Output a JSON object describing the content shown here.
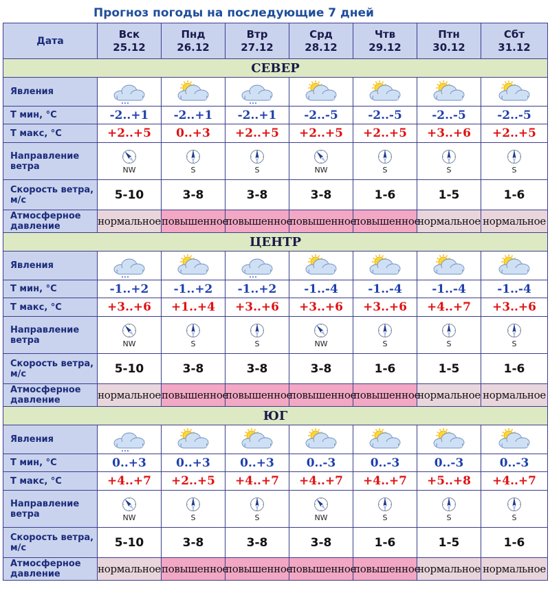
{
  "title": "Прогноз погоды на последующие 7 дней",
  "date_label": "Дата",
  "days": [
    {
      "dow": "Вск",
      "date": "25.12"
    },
    {
      "dow": "Пнд",
      "date": "26.12"
    },
    {
      "dow": "Втр",
      "date": "27.12"
    },
    {
      "dow": "Срд",
      "date": "28.12"
    },
    {
      "dow": "Чтв",
      "date": "29.12"
    },
    {
      "dow": "Птн",
      "date": "30.12"
    },
    {
      "dow": "Сбт",
      "date": "31.12"
    }
  ],
  "row_labels": {
    "phen": "Явления",
    "tmin": "Т мин, °C",
    "tmax": "Т макс, °C",
    "wdir": "Направление ветра",
    "wspeed": "Скорость ветра, м/с",
    "press": "Атмосферное давление"
  },
  "regions": [
    {
      "name": "СЕВЕР",
      "icons": [
        "cloud-snow",
        "sun-cloud",
        "cloud-snow",
        "sun-cloud",
        "sun-cloud",
        "sun-cloud",
        "sun-cloud"
      ],
      "tmin": [
        "-2..+1",
        "-2..+1",
        "-2..+1",
        "-2..-5",
        "-2..-5",
        "-2..-5",
        "-2..-5"
      ],
      "tmax": [
        "+2..+5",
        "0..+3",
        "+2..+5",
        "+2..+5",
        "+2..+5",
        "+3..+6",
        "+2..+5"
      ],
      "wdir": [
        "NW",
        "S",
        "S",
        "NW",
        "S",
        "S",
        "S"
      ],
      "wspeed": [
        "5-10",
        "3-8",
        "3-8",
        "3-8",
        "1-6",
        "1-5",
        "1-6"
      ],
      "press": [
        "нормальное",
        "повышенное",
        "повышенное",
        "повышенное",
        "повышенное",
        "нормальное",
        "нормальное"
      ]
    },
    {
      "name": "ЦЕНТР",
      "icons": [
        "cloud-snow",
        "sun-cloud",
        "cloud-snow",
        "sun-cloud",
        "sun-cloud",
        "sun-cloud",
        "sun-cloud"
      ],
      "tmin": [
        "-1..+2",
        "-1..+2",
        "-1..+2",
        "-1..-4",
        "-1..-4",
        "-1..-4",
        "-1..-4"
      ],
      "tmax": [
        "+3..+6",
        "+1..+4",
        "+3..+6",
        "+3..+6",
        "+3..+6",
        "+4..+7",
        "+3..+6"
      ],
      "wdir": [
        "NW",
        "S",
        "S",
        "NW",
        "S",
        "S",
        "S"
      ],
      "wspeed": [
        "5-10",
        "3-8",
        "3-8",
        "3-8",
        "1-6",
        "1-5",
        "1-6"
      ],
      "press": [
        "нормальное",
        "повышенное",
        "повышенное",
        "повышенное",
        "повышенное",
        "нормальное",
        "нормальное"
      ]
    },
    {
      "name": "ЮГ",
      "icons": [
        "cloud-snow",
        "sun-cloud",
        "sun-cloud",
        "sun-cloud",
        "sun-cloud",
        "sun-cloud",
        "sun-cloud"
      ],
      "tmin": [
        "0..+3",
        "0..+3",
        "0..+3",
        "0..-3",
        "0..-3",
        "0..-3",
        "0..-3"
      ],
      "tmax": [
        "+4..+7",
        "+2..+5",
        "+4..+7",
        "+4..+7",
        "+4..+7",
        "+5..+8",
        "+4..+7"
      ],
      "wdir": [
        "NW",
        "S",
        "S",
        "NW",
        "S",
        "S",
        "S"
      ],
      "wspeed": [
        "5-10",
        "3-8",
        "3-8",
        "3-8",
        "1-6",
        "1-5",
        "1-6"
      ],
      "press": [
        "нормальное",
        "повышенное",
        "повышенное",
        "повышенное",
        "повышенное",
        "нормальное",
        "нормальное"
      ]
    }
  ],
  "colors": {
    "header_bg": "#c9d3ee",
    "region_bg": "#dde9c3",
    "press_high": "#f2a7c4",
    "press_normal": "#e9d6dd",
    "tmin": "#1f3fae",
    "tmax": "#e01010"
  }
}
